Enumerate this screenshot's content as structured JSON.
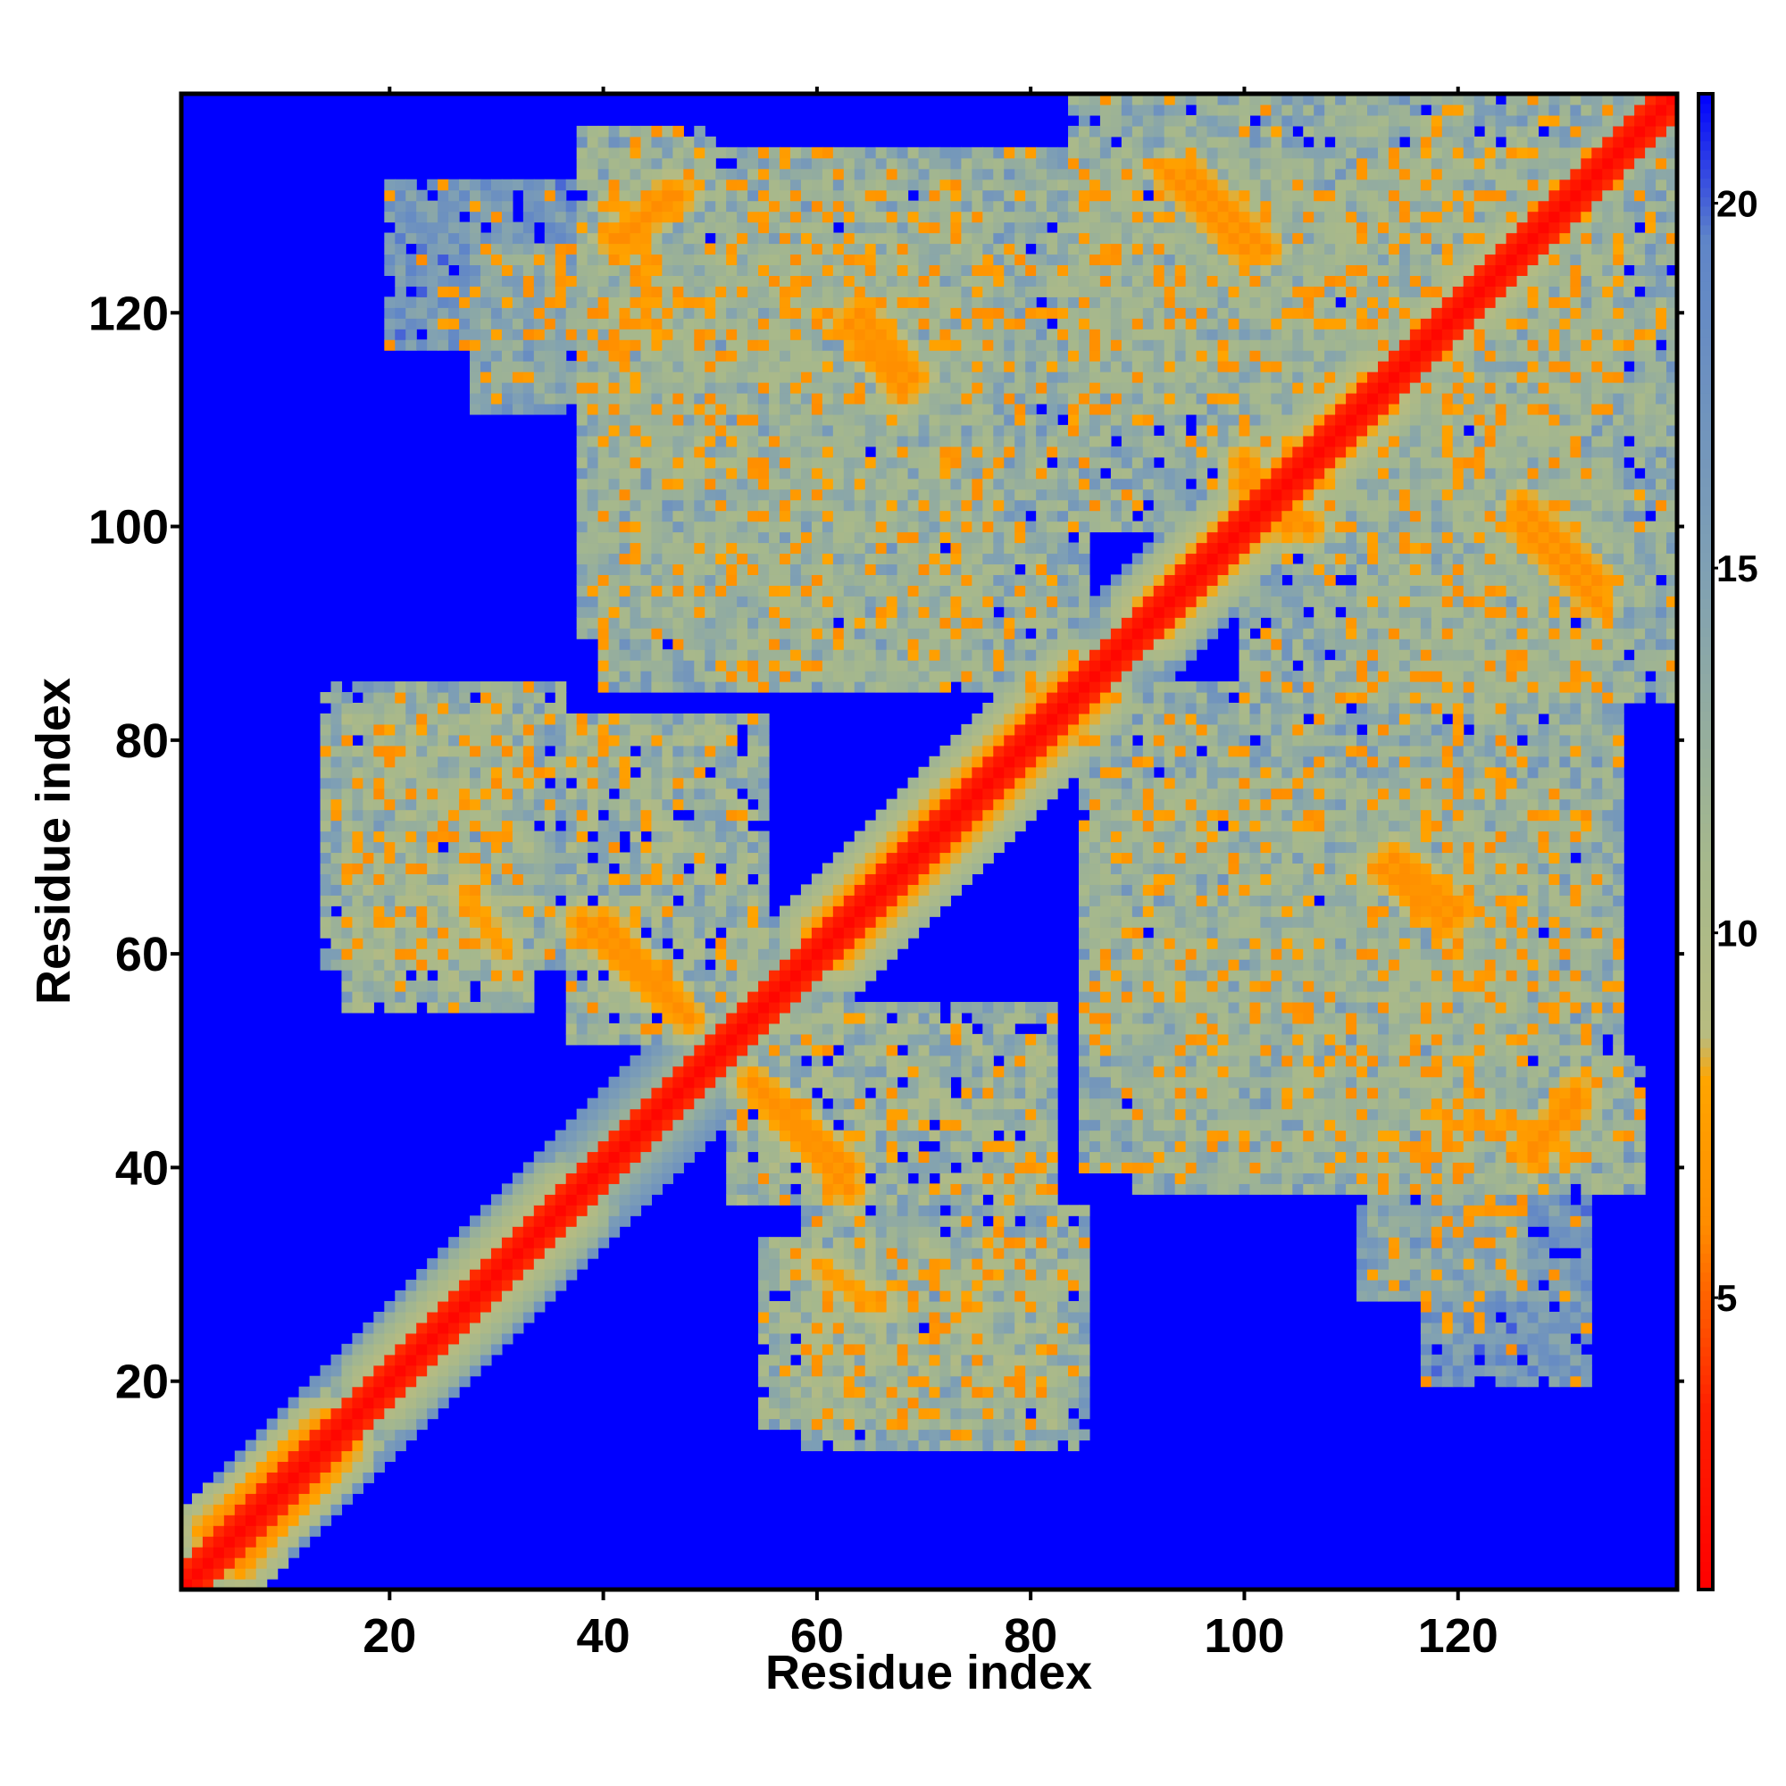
{
  "chart_data": {
    "type": "heatmap",
    "title": "",
    "xlabel": "Residue index",
    "ylabel": "Residue index",
    "n_residues": 140,
    "xlim": [
      1,
      140
    ],
    "ylim": [
      1,
      140
    ],
    "x_ticks": [
      20,
      40,
      60,
      80,
      100,
      120
    ],
    "y_ticks": [
      20,
      40,
      60,
      80,
      100,
      120
    ],
    "x_tick_labels": [
      "20",
      "40",
      "60",
      "80",
      "100",
      "120"
    ],
    "y_tick_labels": [
      "20",
      "40",
      "60",
      "80",
      "100",
      "120"
    ],
    "colorbar": {
      "range": [
        1,
        21.5
      ],
      "ticks": [
        5,
        10,
        15,
        20
      ],
      "tick_labels": [
        "5",
        "10",
        "15",
        "20"
      ],
      "placement": "right"
    },
    "color_scale": [
      {
        "value": 1.0,
        "color": "#ff0000"
      },
      {
        "value": 3.5,
        "color": "#ff2000"
      },
      {
        "value": 6.0,
        "color": "#ff8c00"
      },
      {
        "value": 8.0,
        "color": "#ffa500"
      },
      {
        "value": 8.6,
        "color": "#b8bc80"
      },
      {
        "value": 11.0,
        "color": "#a6b88c"
      },
      {
        "value": 15.0,
        "color": "#7fa0b4"
      },
      {
        "value": 19.5,
        "color": "#5f85c8"
      },
      {
        "value": 21.5,
        "color": "#0000ff"
      }
    ],
    "background_color": "#0000ff",
    "contact_regions": [
      {
        "type": "band",
        "i0": 1,
        "j0": 1,
        "i1": 140,
        "j1": 140,
        "width": 1.5,
        "value": 1.5
      },
      {
        "type": "band",
        "i0": 1,
        "j0": 1,
        "i1": 140,
        "j1": 140,
        "width": 5,
        "value": 9
      },
      {
        "type": "band",
        "i0": 3,
        "j0": 6,
        "i1": 14,
        "j1": 16,
        "width": 3,
        "value": 6
      },
      {
        "type": "band",
        "i0": 18,
        "j0": 20,
        "i1": 36,
        "j1": 38,
        "width": 3,
        "value": 8
      },
      {
        "type": "band",
        "i0": 60,
        "j0": 62,
        "i1": 84,
        "j1": 86,
        "width": 4,
        "value": 6
      },
      {
        "type": "band",
        "i0": 90,
        "j0": 92,
        "i1": 112,
        "j1": 114,
        "width": 3,
        "value": 7
      },
      {
        "type": "band",
        "i0": 118,
        "j0": 118,
        "i1": 126,
        "j1": 126,
        "width": 4,
        "value": 6
      },
      {
        "type": "band",
        "i0": 40,
        "j0": 63,
        "i1": 48,
        "j1": 54,
        "width": 2,
        "value": 6
      },
      {
        "type": "band",
        "i0": 54,
        "j0": 48,
        "i1": 63,
        "j1": 38,
        "width": 2,
        "value": 6
      },
      {
        "type": "band",
        "i0": 42,
        "j0": 127,
        "i1": 46,
        "j1": 131,
        "width": 2,
        "value": 6
      },
      {
        "type": "band",
        "i0": 95,
        "j0": 133,
        "i1": 102,
        "j1": 126,
        "width": 2,
        "value": 6
      },
      {
        "type": "band",
        "i0": 127,
        "j0": 41,
        "i1": 131,
        "j1": 47,
        "width": 2,
        "value": 6
      },
      {
        "type": "band",
        "i0": 126,
        "j0": 100,
        "i1": 133,
        "j1": 93,
        "width": 2,
        "value": 6
      },
      {
        "type": "band",
        "i0": 100,
        "j0": 104,
        "i1": 106,
        "j1": 100,
        "width": 2,
        "value": 6
      },
      {
        "type": "band",
        "i0": 64,
        "j0": 120,
        "i1": 69,
        "j1": 114,
        "width": 2,
        "value": 6
      },
      {
        "type": "band",
        "i0": 113,
        "j0": 68,
        "i1": 119,
        "j1": 63,
        "width": 2,
        "value": 6
      },
      {
        "type": "band",
        "i0": 27,
        "j0": 66,
        "i1": 30,
        "j1": 61,
        "width": 2,
        "value": 7
      },
      {
        "type": "band",
        "i0": 60,
        "j0": 31,
        "i1": 66,
        "j1": 27,
        "width": 2,
        "value": 7
      },
      {
        "type": "blob",
        "i0": 16,
        "i1": 33,
        "j0": 55,
        "j1": 82,
        "value": 13
      },
      {
        "type": "blob",
        "i0": 55,
        "i1": 82,
        "j0": 16,
        "j1": 33,
        "value": 13
      },
      {
        "type": "blob",
        "i0": 37,
        "i1": 55,
        "j0": 52,
        "j1": 82,
        "value": 13
      },
      {
        "type": "blob",
        "i0": 52,
        "i1": 82,
        "j0": 37,
        "j1": 55,
        "value": 13
      },
      {
        "type": "blob",
        "i0": 38,
        "i1": 50,
        "j0": 90,
        "j1": 137,
        "value": 14
      },
      {
        "type": "blob",
        "i0": 90,
        "i1": 137,
        "j0": 38,
        "j1": 50,
        "value": 14
      },
      {
        "type": "blob",
        "i0": 51,
        "i1": 76,
        "j0": 86,
        "j1": 132,
        "value": 14
      },
      {
        "type": "blob",
        "i0": 86,
        "i1": 132,
        "j0": 51,
        "j1": 76,
        "value": 14
      },
      {
        "type": "blob",
        "i0": 59,
        "i1": 85,
        "j0": 14,
        "j1": 36,
        "value": 14
      },
      {
        "type": "blob",
        "i0": 14,
        "i1": 36,
        "j0": 59,
        "j1": 85,
        "value": 14
      },
      {
        "type": "blob",
        "i0": 85,
        "i1": 135,
        "j0": 40,
        "j1": 85,
        "value": 14
      },
      {
        "type": "blob",
        "i0": 40,
        "i1": 85,
        "j0": 85,
        "j1": 135,
        "value": 14
      },
      {
        "type": "blob",
        "i0": 84,
        "i1": 110,
        "j0": 100,
        "j1": 140,
        "value": 14
      },
      {
        "type": "blob",
        "i0": 100,
        "i1": 140,
        "j0": 84,
        "j1": 110,
        "value": 14
      },
      {
        "type": "blob",
        "i0": 111,
        "i1": 135,
        "j0": 85,
        "j1": 140,
        "value": 14
      },
      {
        "type": "blob",
        "i0": 85,
        "i1": 140,
        "j0": 111,
        "j1": 135,
        "value": 14
      },
      {
        "type": "blob",
        "i0": 20,
        "i1": 45,
        "j0": 117,
        "j1": 132,
        "value": 17
      },
      {
        "type": "blob",
        "i0": 117,
        "i1": 132,
        "j0": 20,
        "j1": 45,
        "value": 17
      },
      {
        "type": "blob",
        "i0": 111,
        "i1": 126,
        "j0": 28,
        "j1": 70,
        "value": 15
      },
      {
        "type": "blob",
        "i0": 28,
        "i1": 70,
        "j0": 111,
        "j1": 126,
        "value": 15
      }
    ]
  }
}
